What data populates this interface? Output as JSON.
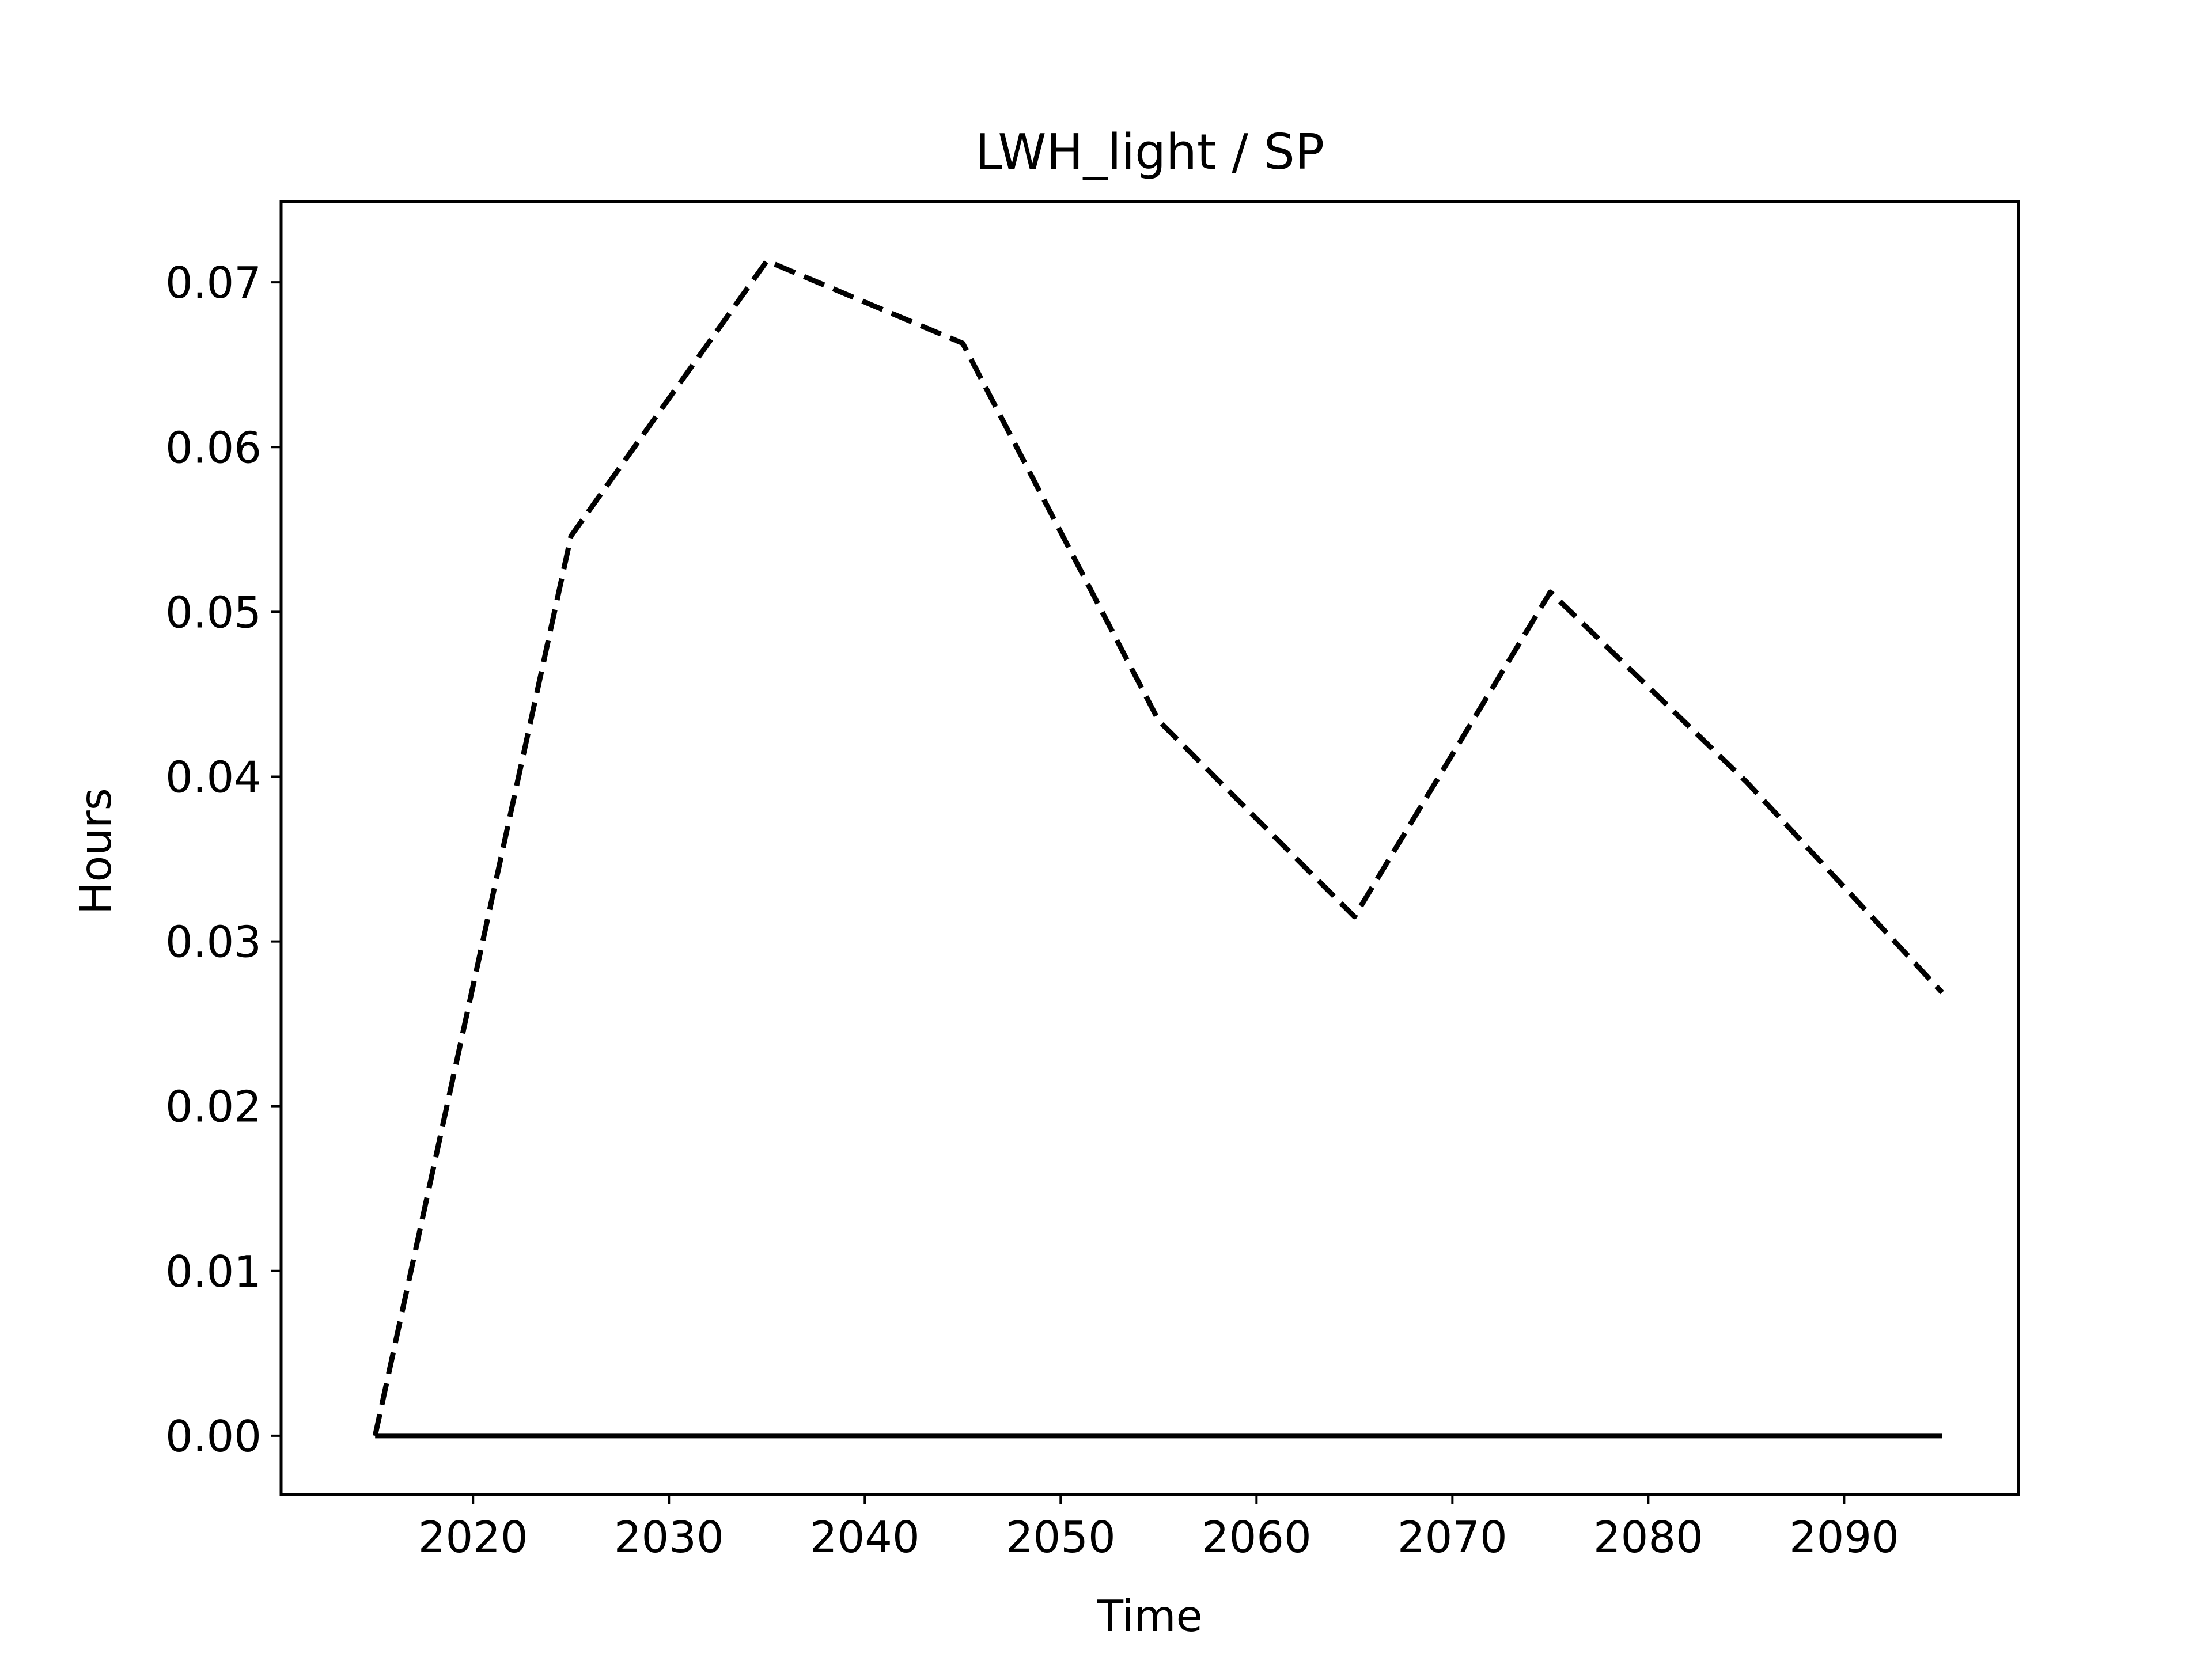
{
  "chart_data": {
    "type": "line",
    "title": "LWH_light / SP",
    "xlabel": "Time",
    "ylabel": "Hours",
    "xlim": [
      2010.2,
      2098.9
    ],
    "ylim": [
      -0.00357,
      0.0749
    ],
    "x_ticks": [
      2020,
      2030,
      2040,
      2050,
      2060,
      2070,
      2080,
      2090
    ],
    "y_ticks": [
      0.0,
      0.01,
      0.02,
      0.03,
      0.04,
      0.05,
      0.06,
      0.07
    ],
    "x_tick_labels": [
      "2020",
      "2030",
      "2040",
      "2050",
      "2060",
      "2070",
      "2080",
      "2090"
    ],
    "y_tick_labels": [
      "0.00",
      "0.01",
      "0.02",
      "0.03",
      "0.04",
      "0.05",
      "0.06",
      "0.07"
    ],
    "grid": false,
    "legend": false,
    "x": [
      2015,
      2025,
      2035,
      2045,
      2055,
      2065,
      2075,
      2085,
      2095
    ],
    "series": [
      {
        "style": "dashed",
        "color": "#000000",
        "values": [
          0.0,
          0.0546,
          0.0713,
          0.0663,
          0.0434,
          0.0315,
          0.0512,
          0.0397,
          0.0269
        ]
      },
      {
        "style": "solid",
        "color": "#000000",
        "values": [
          0.0,
          0.0,
          0.0,
          0.0,
          0.0,
          0.0,
          0.0,
          0.0,
          0.0
        ]
      }
    ]
  }
}
